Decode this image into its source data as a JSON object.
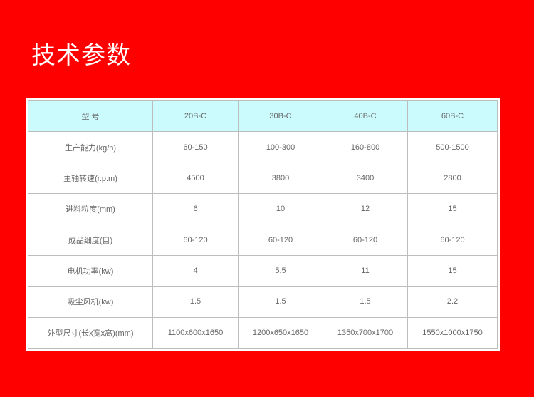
{
  "title": "技术参数",
  "table": {
    "header": [
      "型 号",
      "20B-C",
      "30B-C",
      "40B-C",
      "60B-C"
    ],
    "rows": [
      [
        "生产能力(kg/h)",
        "60-150",
        "100-300",
        "160-800",
        "500-1500"
      ],
      [
        "主轴转速(r.p.m)",
        "4500",
        "3800",
        "3400",
        "2800"
      ],
      [
        "进料粒度(mm)",
        "6",
        "10",
        "12",
        "15"
      ],
      [
        "成品细度(目)",
        "60-120",
        "60-120",
        "60-120",
        "60-120"
      ],
      [
        "电机功率(kw)",
        "4",
        "5.5",
        "11",
        "15"
      ],
      [
        "吸尘风机(kw)",
        "1.5",
        "1.5",
        "1.5",
        "2.2"
      ],
      [
        "外型尺寸(长x宽x高)(mm)",
        "1100x600x1650",
        "1200x650x1650",
        "1350x700x1700",
        "1550x1000x1750"
      ]
    ]
  },
  "colors": {
    "background": "#fe0000",
    "header_row": "#ccfbfe"
  }
}
